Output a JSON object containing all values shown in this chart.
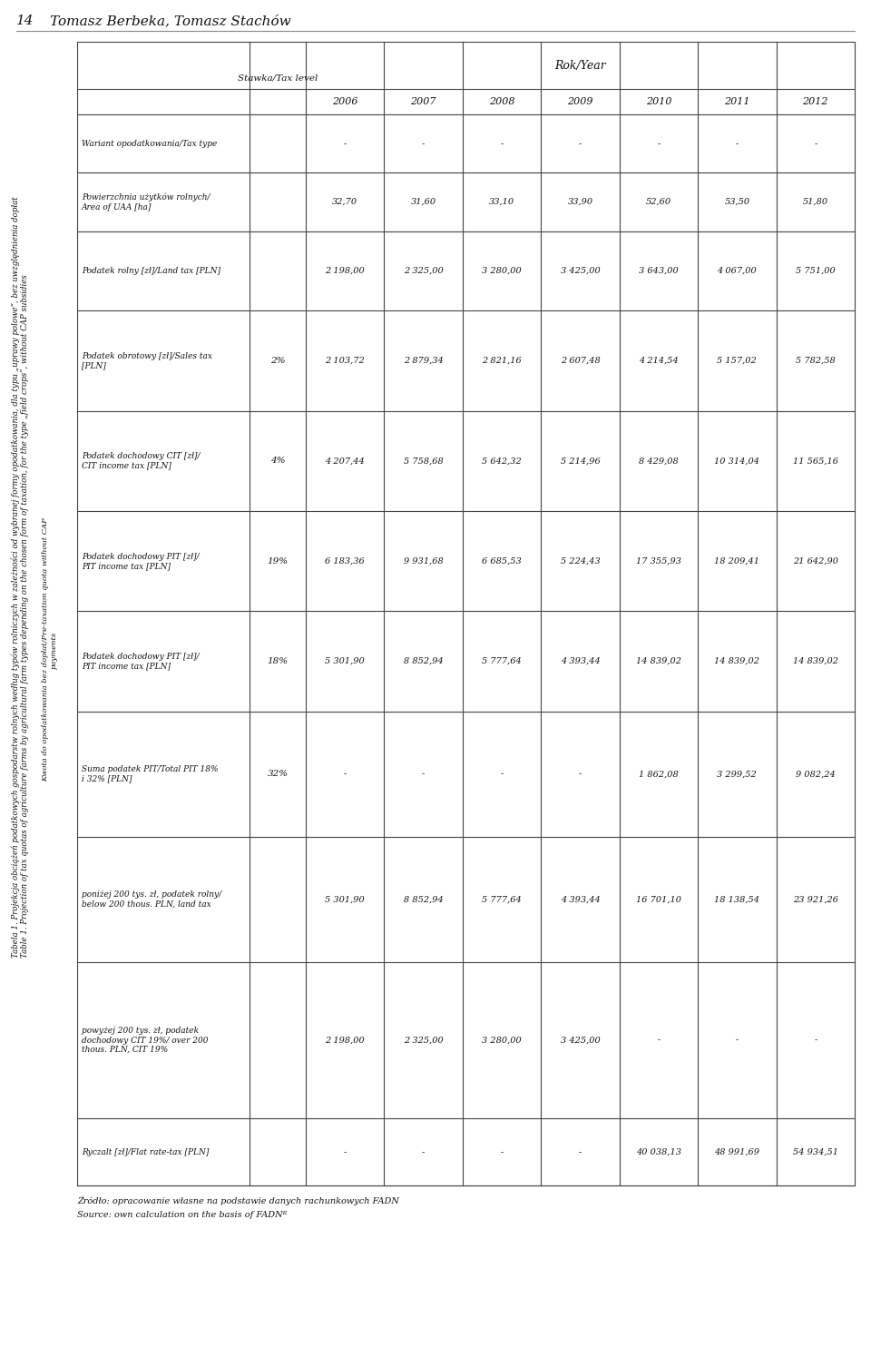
{
  "page_number": "14",
  "authors": "Tomasz Berbeka, Tomasz Stachów",
  "title_pl": "Tabela 1. Projekcja obciążeń podatkowych gospodarstw rolnych według typów rolniczych w zależności od wybranej formy opodatkowania, dla typu „uprawy polowe”, bez uwzględnienia dopłat",
  "title_en": "Table 1. Projection of tax quotas of agriculture farms by agricultural farm types depending on the chosen form of taxation, for the type „field crops”, without CAP subsidies",
  "col_rok_year": "Rok/Year",
  "col_stawka": "Stawka/Tax level",
  "years": [
    "2006",
    "2007",
    "2008",
    "2009",
    "2010",
    "2011",
    "2012"
  ],
  "row_headers_col0": [
    "Wariant opodatkowania/Tax type",
    "Powierzchnia użytków rolnych/\nArea of UAA [ha]",
    "Podatek rolny [zł]/Land tax [PLN]",
    "Podatek obrotowy [zł]/Sales tax\n[PLN]",
    "Podatek dochodowy CIT [zł]/\nCIT income tax [PLN]",
    "Podatek dochodowy PIT [zł]/\nPIT income tax [PLN]",
    "Podatek dochodowy PIT [zł]/\nPIT income tax [PLN]",
    "Suma podatek PIT/Total PIT 18%\ni 32% [PLN]",
    "poniżej 200 tys. zł, podatek rolny/\nbelow 200 thous. PLN, land tax",
    "powyżej 200 tys. zł, podatek\ndochodowy CIT 19%/ over 200\nthous. PLN, CIT 19%",
    "Ryczalt [zł]/Flat rate-tax [PLN]"
  ],
  "row_headers_stawka": [
    "-",
    "-",
    "-",
    "2%",
    "4%",
    "19%",
    "18%",
    "32%",
    "-",
    "-",
    "-"
  ],
  "data": [
    [
      "-",
      "-",
      "-",
      "-",
      "-",
      "-",
      "-"
    ],
    [
      "32,70",
      "31,60",
      "33,10",
      "33,90",
      "52,60",
      "53,50",
      "51,80"
    ],
    [
      "2 198,00",
      "2 325,00",
      "3 280,00",
      "3 425,00",
      "3 643,00",
      "4 067,00",
      "5 751,00"
    ],
    [
      "2 103,72",
      "2 879,34",
      "2 821,16",
      "2 607,48",
      "4 214,54",
      "5 157,02",
      "5 782,58"
    ],
    [
      "4 207,44",
      "5 758,68",
      "5 642,32",
      "5 214,96",
      "8 429,08",
      "10 314,04",
      "11 565,16"
    ],
    [
      "6 183,36",
      "9 931,68",
      "6 685,53",
      "5 224,43",
      "17 355,93",
      "18 209,41",
      "21 642,90"
    ],
    [
      "5 301,90",
      "8 852,94",
      "5 777,64",
      "4 393,44",
      "14 839,02",
      "14 839,02",
      "14 839,02"
    ],
    [
      "-",
      "-",
      "-",
      "-",
      "1 862,08",
      "3 299,52",
      "9 082,24"
    ],
    [
      "5 301,90",
      "8 852,94",
      "5 777,64",
      "4 393,44",
      "16 701,10",
      "18 138,54",
      "23 921,26"
    ],
    [
      "2 198,00",
      "2 325,00",
      "3 280,00",
      "3 425,00",
      "-",
      "-",
      "-"
    ],
    [
      "-",
      "-",
      "-",
      "-",
      "40 038,13",
      "48 991,69",
      "54 934,51"
    ]
  ],
  "rotated_label": "Kwota do opodatkowania bez dopłat/Pre-taxation quota without CAP\npayments",
  "source_pl": "Źródło: opracowanie własne na podstawie danych rachunkowych FADN",
  "source_en": "Source: own calculation on the basis of FADNᴿ",
  "background_color": "#ffffff",
  "line_color": "#444444",
  "text_color": "#111111"
}
